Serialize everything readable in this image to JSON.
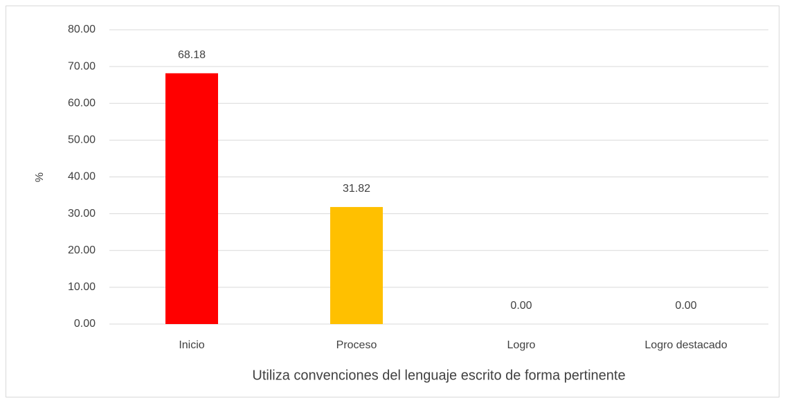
{
  "chart_data": {
    "type": "bar",
    "categories": [
      "Inicio",
      "Proceso",
      "Logro",
      "Logro destacado"
    ],
    "values": [
      68.18,
      31.82,
      0,
      0
    ],
    "value_labels": [
      "68.18",
      "31.82",
      "0.00",
      "0.00"
    ],
    "colors": [
      "#ff0000",
      "#ffc000",
      null,
      null
    ],
    "x_label": "Utiliza convenciones del lenguaje escrito de forma pertinente",
    "y_label": "%",
    "ylim": [
      0,
      80
    ],
    "yticks": [
      {
        "value": 0,
        "label": "0.00"
      },
      {
        "value": 10,
        "label": "10.00"
      },
      {
        "value": 20,
        "label": "20.00"
      },
      {
        "value": 30,
        "label": "30.00"
      },
      {
        "value": 40,
        "label": "40.00"
      },
      {
        "value": 50,
        "label": "50.00"
      },
      {
        "value": 60,
        "label": "60.00"
      },
      {
        "value": 70,
        "label": "70.00"
      },
      {
        "value": 80,
        "label": "80.00"
      }
    ],
    "grid": true
  }
}
